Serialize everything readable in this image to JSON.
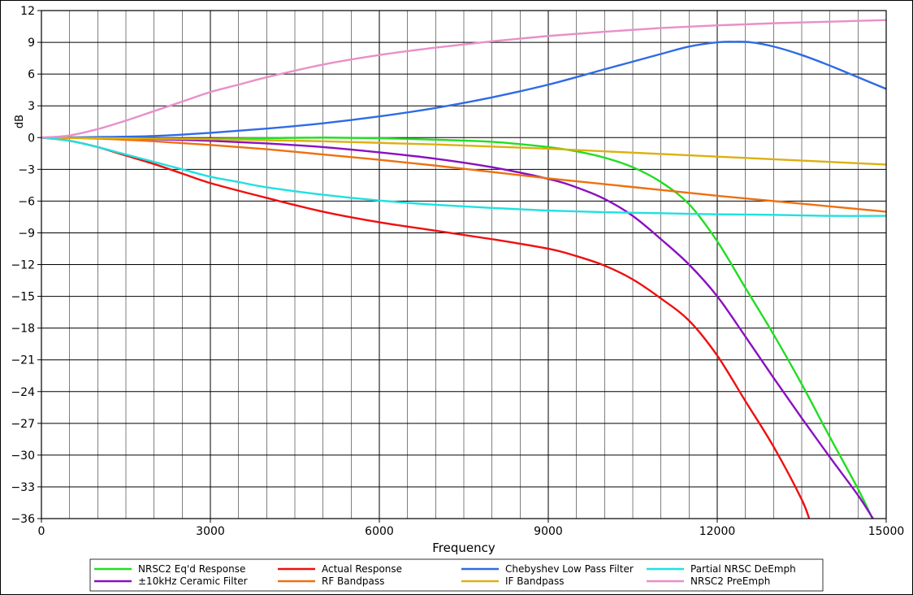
{
  "chart_data": {
    "type": "line",
    "title": "",
    "xlabel": "Frequency",
    "ylabel": "dB",
    "xlim": [
      0,
      15000
    ],
    "ylim": [
      -36,
      12
    ],
    "x_major_ticks": [
      0,
      3000,
      6000,
      9000,
      12000,
      15000
    ],
    "x_minor_step": 500,
    "y_ticks": [
      12,
      9,
      6,
      3,
      0,
      -3,
      -6,
      -9,
      -12,
      -15,
      -18,
      -21,
      -24,
      -27,
      -30,
      -33,
      -36
    ],
    "grid": true,
    "legend_position": "bottom",
    "x_tick_labels": [
      "0",
      "3000",
      "6000",
      "9000",
      "12000",
      "15000"
    ],
    "y_tick_labels": [
      "12",
      "9",
      "6",
      "3",
      "0",
      "−3",
      "−6",
      "−9",
      "−12",
      "−15",
      "−18",
      "−21",
      "−24",
      "−27",
      "−30",
      "−33",
      "−36"
    ],
    "series": [
      {
        "name": "NRSC2 Eq'd Response",
        "color": "#22dd22",
        "points": [
          [
            0,
            0
          ],
          [
            1000,
            -0.05
          ],
          [
            2000,
            -0.1
          ],
          [
            3000,
            -0.1
          ],
          [
            4000,
            -0.05
          ],
          [
            5000,
            0
          ],
          [
            6000,
            -0.05
          ],
          [
            7000,
            -0.2
          ],
          [
            8000,
            -0.4
          ],
          [
            9000,
            -0.9
          ],
          [
            9500,
            -1.3
          ],
          [
            10000,
            -1.9
          ],
          [
            10500,
            -2.8
          ],
          [
            11000,
            -4.2
          ],
          [
            11500,
            -6.3
          ],
          [
            12000,
            -9.8
          ],
          [
            12500,
            -14.2
          ],
          [
            13000,
            -18.6
          ],
          [
            13500,
            -23.3
          ],
          [
            14000,
            -28.3
          ],
          [
            14500,
            -33.2
          ],
          [
            14800,
            -36.5
          ]
        ]
      },
      {
        "name": "±10kHz Ceramic Filter",
        "color": "#8a10c0",
        "points": [
          [
            0,
            0
          ],
          [
            1000,
            -0.05
          ],
          [
            2000,
            -0.15
          ],
          [
            3000,
            -0.3
          ],
          [
            4000,
            -0.55
          ],
          [
            5000,
            -0.9
          ],
          [
            6000,
            -1.4
          ],
          [
            7000,
            -2.0
          ],
          [
            8000,
            -2.8
          ],
          [
            9000,
            -3.9
          ],
          [
            9500,
            -4.7
          ],
          [
            10000,
            -5.8
          ],
          [
            10500,
            -7.4
          ],
          [
            11000,
            -9.6
          ],
          [
            11500,
            -12.0
          ],
          [
            12000,
            -15.0
          ],
          [
            12500,
            -18.8
          ],
          [
            13000,
            -22.7
          ],
          [
            13500,
            -26.5
          ],
          [
            14000,
            -30.2
          ],
          [
            14500,
            -33.8
          ],
          [
            14800,
            -36.3
          ]
        ]
      },
      {
        "name": "Actual Response",
        "color": "#ee1010",
        "points": [
          [
            0,
            0
          ],
          [
            500,
            -0.3
          ],
          [
            1000,
            -0.9
          ],
          [
            1500,
            -1.7
          ],
          [
            2000,
            -2.5
          ],
          [
            2500,
            -3.4
          ],
          [
            3000,
            -4.3
          ],
          [
            4000,
            -5.7
          ],
          [
            5000,
            -7.0
          ],
          [
            6000,
            -8.0
          ],
          [
            7000,
            -8.8
          ],
          [
            8000,
            -9.6
          ],
          [
            9000,
            -10.5
          ],
          [
            9500,
            -11.2
          ],
          [
            10000,
            -12.1
          ],
          [
            10500,
            -13.4
          ],
          [
            11000,
            -15.2
          ],
          [
            11500,
            -17.3
          ],
          [
            12000,
            -20.6
          ],
          [
            12500,
            -24.9
          ],
          [
            13000,
            -29.2
          ],
          [
            13500,
            -34.2
          ],
          [
            13650,
            -36.3
          ]
        ]
      },
      {
        "name": "RF Bandpass",
        "color": "#ee7010",
        "points": [
          [
            0,
            0
          ],
          [
            1000,
            -0.1
          ],
          [
            2000,
            -0.35
          ],
          [
            3000,
            -0.7
          ],
          [
            4000,
            -1.1
          ],
          [
            5000,
            -1.6
          ],
          [
            6000,
            -2.1
          ],
          [
            7000,
            -2.65
          ],
          [
            8000,
            -3.25
          ],
          [
            9000,
            -3.85
          ],
          [
            10000,
            -4.4
          ],
          [
            11000,
            -4.95
          ],
          [
            12000,
            -5.5
          ],
          [
            13000,
            -6.0
          ],
          [
            14000,
            -6.5
          ],
          [
            15000,
            -7.0
          ]
        ]
      },
      {
        "name": "Chebyshev Low Pass Filter",
        "color": "#2e6be6",
        "points": [
          [
            0,
            0
          ],
          [
            1000,
            0.05
          ],
          [
            2000,
            0.15
          ],
          [
            3000,
            0.45
          ],
          [
            4000,
            0.85
          ],
          [
            5000,
            1.35
          ],
          [
            6000,
            2.0
          ],
          [
            7000,
            2.8
          ],
          [
            8000,
            3.8
          ],
          [
            9000,
            5.0
          ],
          [
            10000,
            6.45
          ],
          [
            11000,
            7.9
          ],
          [
            11500,
            8.6
          ],
          [
            12000,
            9.0
          ],
          [
            12300,
            9.05
          ],
          [
            12600,
            9.0
          ],
          [
            13000,
            8.6
          ],
          [
            13500,
            7.8
          ],
          [
            14000,
            6.8
          ],
          [
            14500,
            5.7
          ],
          [
            15000,
            4.6
          ]
        ]
      },
      {
        "name": "IF Bandpass",
        "color": "#dcb010",
        "points": [
          [
            0,
            0
          ],
          [
            1000,
            -0.05
          ],
          [
            2000,
            -0.1
          ],
          [
            3000,
            -0.15
          ],
          [
            4000,
            -0.25
          ],
          [
            5000,
            -0.35
          ],
          [
            6000,
            -0.5
          ],
          [
            7000,
            -0.65
          ],
          [
            8000,
            -0.85
          ],
          [
            9000,
            -1.05
          ],
          [
            10000,
            -1.3
          ],
          [
            11000,
            -1.55
          ],
          [
            12000,
            -1.8
          ],
          [
            13000,
            -2.05
          ],
          [
            14000,
            -2.3
          ],
          [
            15000,
            -2.55
          ]
        ]
      },
      {
        "name": "Partial NRSC DeEmph",
        "color": "#20e0e0",
        "points": [
          [
            0,
            0
          ],
          [
            500,
            -0.3
          ],
          [
            1000,
            -0.9
          ],
          [
            1500,
            -1.6
          ],
          [
            2000,
            -2.3
          ],
          [
            2500,
            -3.0
          ],
          [
            3000,
            -3.7
          ],
          [
            3500,
            -4.2
          ],
          [
            4000,
            -4.7
          ],
          [
            5000,
            -5.4
          ],
          [
            6000,
            -5.95
          ],
          [
            7000,
            -6.35
          ],
          [
            8000,
            -6.65
          ],
          [
            9000,
            -6.9
          ],
          [
            10000,
            -7.05
          ],
          [
            11000,
            -7.15
          ],
          [
            12000,
            -7.25
          ],
          [
            13000,
            -7.3
          ],
          [
            14000,
            -7.4
          ],
          [
            15000,
            -7.4
          ]
        ]
      },
      {
        "name": "NRSC2 PreEmph",
        "color": "#e890c8",
        "points": [
          [
            0,
            0
          ],
          [
            500,
            0.2
          ],
          [
            1000,
            0.8
          ],
          [
            1500,
            1.6
          ],
          [
            2000,
            2.5
          ],
          [
            2500,
            3.4
          ],
          [
            3000,
            4.3
          ],
          [
            3500,
            5.0
          ],
          [
            4000,
            5.7
          ],
          [
            5000,
            6.9
          ],
          [
            6000,
            7.8
          ],
          [
            7000,
            8.5
          ],
          [
            8000,
            9.1
          ],
          [
            9000,
            9.6
          ],
          [
            10000,
            10.0
          ],
          [
            11000,
            10.35
          ],
          [
            12000,
            10.6
          ],
          [
            13000,
            10.8
          ],
          [
            14000,
            10.95
          ],
          [
            15000,
            11.1
          ]
        ]
      }
    ]
  }
}
